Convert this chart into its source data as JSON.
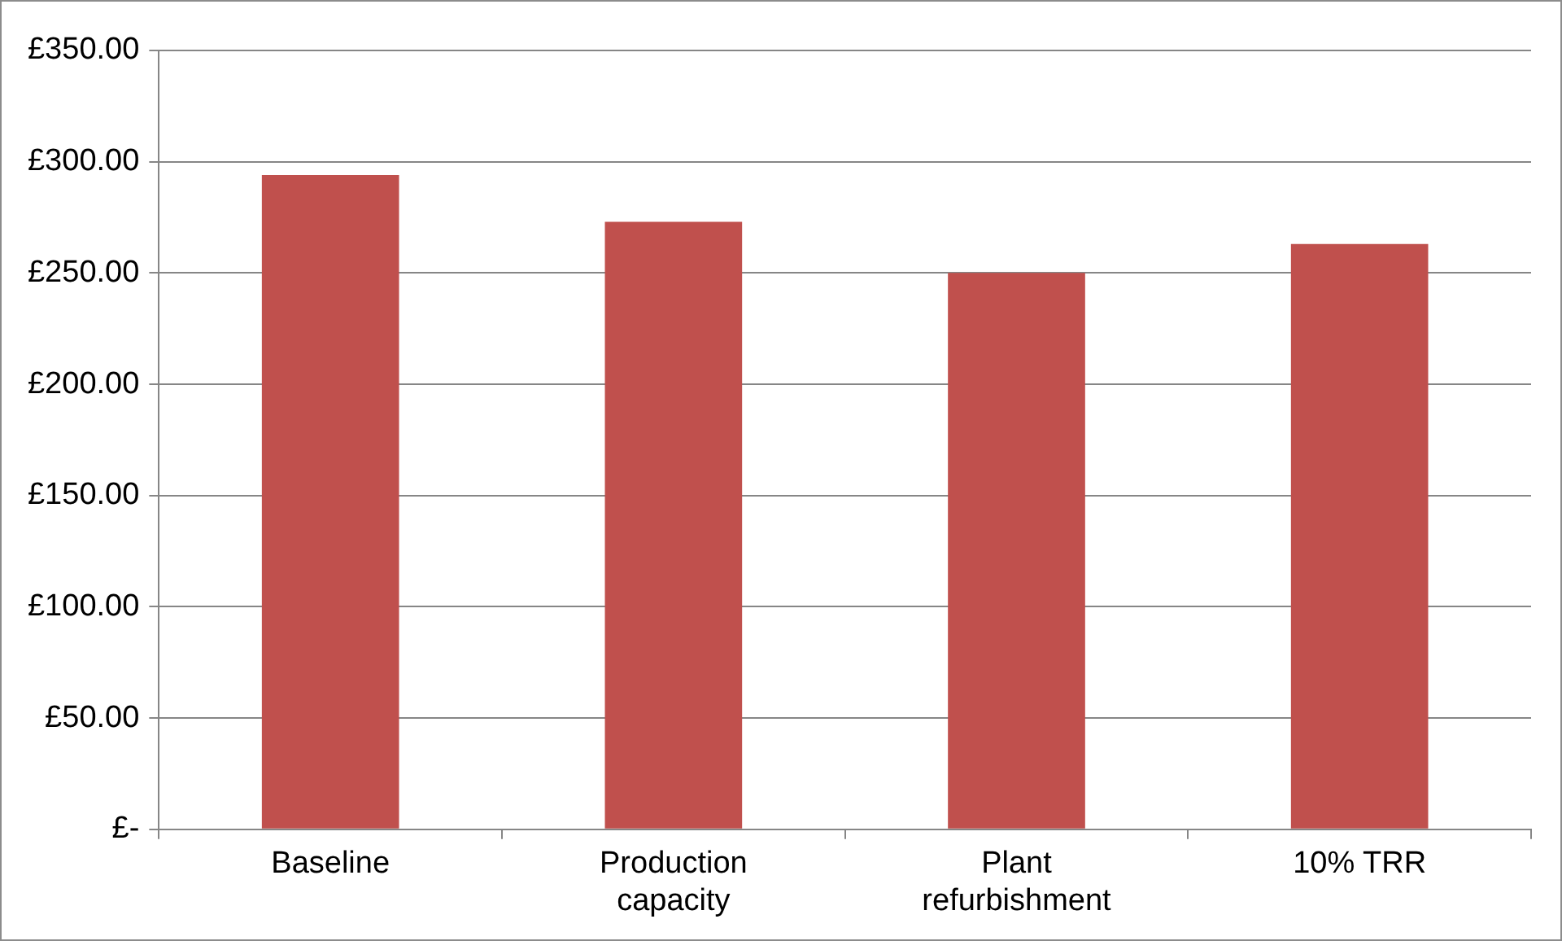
{
  "chart_data": {
    "type": "bar",
    "categories": [
      "Baseline",
      "Production capacity",
      "Plant refurbishment",
      "10% TRR"
    ],
    "values": [
      294,
      273,
      250,
      263
    ],
    "color": "#c0504d",
    "ylim": [
      0,
      350
    ],
    "yticks": [
      {
        "value": 0,
        "label": "£-"
      },
      {
        "value": 50,
        "label": "£50.00"
      },
      {
        "value": 100,
        "label": "£100.00"
      },
      {
        "value": 150,
        "label": "£150.00"
      },
      {
        "value": 200,
        "label": "£200.00"
      },
      {
        "value": 250,
        "label": "£250.00"
      },
      {
        "value": 300,
        "label": "£300.00"
      },
      {
        "value": 350,
        "label": "£350.00"
      }
    ],
    "grid": "y"
  }
}
